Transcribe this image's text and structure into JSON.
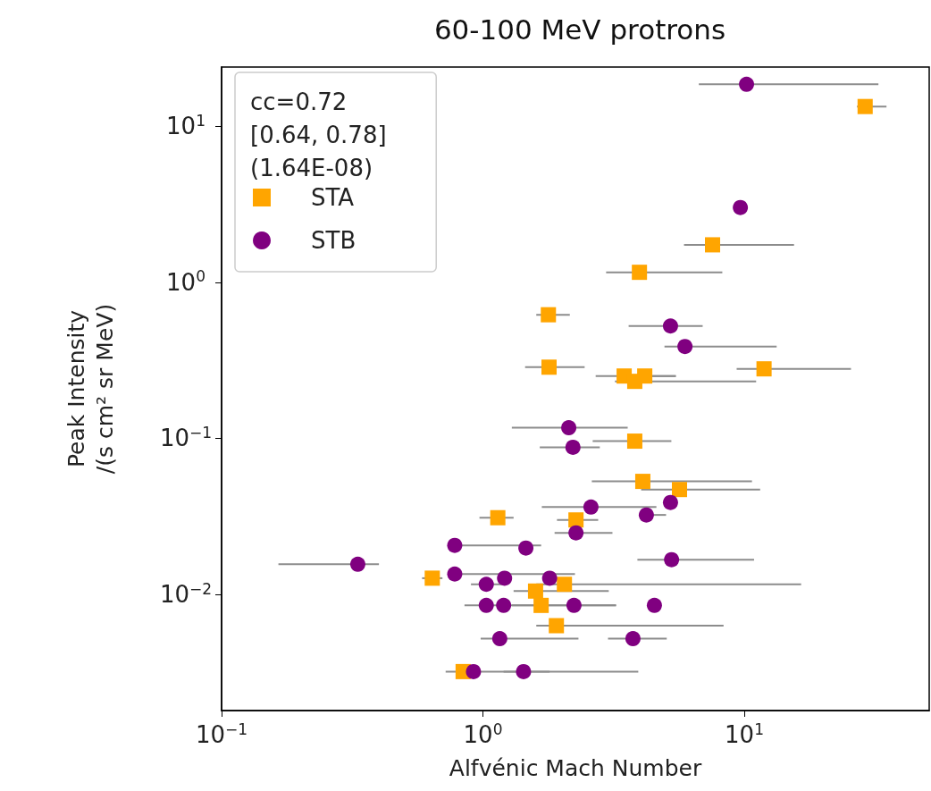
{
  "chart_data": {
    "type": "scatter",
    "title": "60-100 MeV protrons",
    "xlabel": "Alfvénic Mach Number",
    "ylabel": "Peak Intensity\n/(s cm² sr MeV)",
    "legend_title": "cc=0.72\n[0.64, 0.78]\n(1.64E-08)",
    "log": "xy",
    "xlim": [
      0.1,
      51
    ],
    "ylim": [
      0.0018,
      24
    ],
    "xticks": [
      {
        "value": 0.1,
        "label": "10$^{−1}$"
      },
      {
        "value": 1,
        "label": "10$^{0}$"
      },
      {
        "value": 10,
        "label": "10$^{1}$"
      }
    ],
    "yticks": [
      {
        "value": 0.01,
        "label": "10$^{−2}$"
      },
      {
        "value": 0.1,
        "label": "10$^{−1}$"
      },
      {
        "value": 1,
        "label": "10$^{0}$"
      },
      {
        "value": 10,
        "label": "10$^{1}$"
      }
    ],
    "legend": "top left",
    "grid": false,
    "series": [
      {
        "name": "STA",
        "color": "#ffa500",
        "marker": "square",
        "x": [
          29,
          7.56,
          3.97,
          1.78,
          1.79,
          3.47,
          4.16,
          3.81,
          11.9,
          3.81,
          4.09,
          5.65,
          1.14,
          2.27,
          0.64,
          1.59,
          2.05,
          1.67,
          1.91,
          0.84
        ],
        "values": [
          13.4,
          1.74,
          1.16,
          0.62,
          0.286,
          0.251,
          0.251,
          0.232,
          0.279,
          0.096,
          0.053,
          0.047,
          0.031,
          0.03,
          0.0127,
          0.0105,
          0.0116,
          0.0085,
          0.0063,
          0.0032
        ],
        "xerrors": [
          [
            27,
            35
          ],
          [
            5.88,
            15.5
          ],
          [
            2.96,
            8.24
          ],
          [
            1.6,
            2.15
          ],
          [
            1.45,
            2.45
          ],
          [
            2.7,
            5.47
          ],
          [
            4.16,
            5.47
          ],
          [
            3.2,
            11.1
          ],
          [
            9.35,
            25.6
          ],
          [
            2.63,
            5.26
          ],
          [
            2.61,
            10.7
          ],
          [
            4.03,
            11.5
          ],
          [
            0.97,
            1.31
          ],
          [
            1.92,
            2.76
          ],
          [
            0.585,
            0.7
          ],
          [
            1.31,
            3.03
          ],
          [
            1.6,
            16.5
          ],
          [
            1.29,
            3.23
          ],
          [
            1.6,
            8.33
          ],
          [
            0.72,
            1.8
          ]
        ]
      },
      {
        "name": "STB",
        "color": "#800080",
        "marker": "circle",
        "x": [
          10.2,
          9.66,
          5.22,
          5.93,
          2.13,
          2.21,
          5.22,
          2.59,
          4.22,
          2.27,
          0.78,
          1.46,
          0.332,
          5.27,
          0.78,
          1.21,
          1.8,
          1.03,
          1.03,
          1.2,
          2.23,
          4.53,
          1.16,
          3.75,
          0.92,
          1.43
        ],
        "values": [
          18.6,
          3.02,
          0.525,
          0.388,
          0.117,
          0.0877,
          0.0388,
          0.0363,
          0.0323,
          0.0248,
          0.0206,
          0.0198,
          0.0156,
          0.0167,
          0.0135,
          0.0127,
          0.0127,
          0.0116,
          0.0085,
          0.0085,
          0.0085,
          0.0085,
          0.0052,
          0.0052,
          0.0032,
          0.0032
        ],
        "xerrors": [
          [
            6.7,
            32.6
          ],
          null,
          [
            3.61,
            6.93
          ],
          [
            4.95,
            13.3
          ],
          [
            1.29,
            3.58
          ],
          [
            1.65,
            2.8
          ],
          null,
          [
            1.68,
            4.61
          ],
          [
            4.03,
            5.02
          ],
          [
            1.88,
            3.13
          ],
          [
            0.78,
            1.67
          ],
          null,
          [
            0.165,
            0.4
          ],
          [
            3.9,
            10.9
          ],
          [
            0.78,
            2.25
          ],
          null,
          null,
          [
            0.9,
            1.2
          ],
          [
            0.85,
            3.23
          ],
          null,
          null,
          null,
          [
            0.98,
            2.32
          ],
          [
            3.01,
            5.05
          ],
          null,
          [
            1.2,
            3.93
          ]
        ]
      }
    ]
  }
}
